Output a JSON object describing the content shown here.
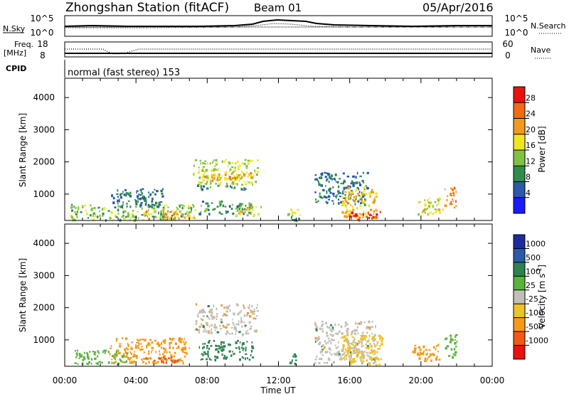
{
  "header": {
    "station": "Zhongshan Station (fitACF)",
    "beam": "Beam 01",
    "date": "05/Apr/2016"
  },
  "strips": {
    "nsky_label": "N.Sky",
    "nsearch_label": "N.Search",
    "noise_ticks": [
      "10^5",
      "10^0"
    ],
    "freq_label_1": "Freq.",
    "freq_label_2": "[MHz]",
    "freq_ticks": [
      "18",
      "8"
    ],
    "nave_label": "Nave",
    "nave_ticks": [
      "60",
      "0"
    ],
    "cpid_label": "CPID",
    "cpid_text": "normal (fast stereo) 153"
  },
  "colors": {
    "power": [
      "#1a1aff",
      "#2a5aa8",
      "#2f8c4e",
      "#7fc241",
      "#f0e61e",
      "#f29a1e",
      "#f26a14",
      "#e8140c"
    ],
    "velocity": [
      "#e8140c",
      "#f25a14",
      "#f59a18",
      "#f0c22a",
      "#c0c0b8",
      "#5ab43a",
      "#2e8250",
      "#2a5aa8",
      "#1e2aa0"
    ]
  },
  "chart_data": [
    {
      "type": "heatmap",
      "variable": "power",
      "ylabel": "Slant Range [km]",
      "yticks": [
        1000,
        2000,
        3000,
        4000
      ],
      "ylim": [
        180,
        4600
      ],
      "xlim": [
        0,
        24
      ],
      "xticks": [
        "00:00",
        "04:00",
        "08:00",
        "12:00",
        "16:00",
        "20:00",
        "00:00"
      ],
      "colorbar_label": "Power [dB]",
      "colorbar_ticks": [
        4,
        8,
        12,
        16,
        20,
        24,
        28
      ],
      "colorbar_range": [
        0,
        32
      ],
      "regions": [
        {
          "t0": 0.3,
          "t1": 7.3,
          "r0": 220,
          "r1": 700,
          "value": 14
        },
        {
          "t0": 4.5,
          "t1": 7.0,
          "r0": 250,
          "r1": 500,
          "value": 22
        },
        {
          "t0": 2.5,
          "t1": 5.5,
          "r0": 600,
          "r1": 1200,
          "value": 8
        },
        {
          "t0": 7.2,
          "t1": 10.8,
          "r0": 1300,
          "r1": 2100,
          "value": 16
        },
        {
          "t0": 7.8,
          "t1": 10.5,
          "r0": 1450,
          "r1": 1700,
          "value": 22
        },
        {
          "t0": 7.3,
          "t1": 10.2,
          "r0": 1150,
          "r1": 1300,
          "value": 10
        },
        {
          "t0": 7.5,
          "t1": 10.5,
          "r0": 400,
          "r1": 800,
          "value": 10
        },
        {
          "t0": 9.5,
          "t1": 11.0,
          "r0": 350,
          "r1": 650,
          "value": 18
        },
        {
          "t0": 12.5,
          "t1": 13.2,
          "r0": 200,
          "r1": 600,
          "value": 14
        },
        {
          "t0": 14.0,
          "t1": 17.0,
          "r0": 700,
          "r1": 1700,
          "value": 8
        },
        {
          "t0": 15.5,
          "t1": 17.5,
          "r0": 250,
          "r1": 1250,
          "value": 20
        },
        {
          "t0": 16.0,
          "t1": 17.8,
          "r0": 220,
          "r1": 500,
          "value": 28
        },
        {
          "t0": 19.8,
          "t1": 21.2,
          "r0": 350,
          "r1": 900,
          "value": 18
        },
        {
          "t0": 21.3,
          "t1": 22.0,
          "r0": 600,
          "r1": 1300,
          "value": 24
        }
      ]
    },
    {
      "type": "heatmap",
      "variable": "velocity",
      "ylabel": "Slant Range [km]",
      "yticks": [
        1000,
        2000,
        3000,
        4000
      ],
      "ylim": [
        180,
        4600
      ],
      "xlim": [
        0,
        24
      ],
      "xlabel": "Time UT",
      "xticks": [
        "00:00",
        "04:00",
        "08:00",
        "12:00",
        "16:00",
        "20:00",
        "00:00"
      ],
      "colorbar_label": "Velocity [m s-1]",
      "colorbar_ticks": [
        "1000",
        "500",
        "100",
        "25",
        "-25",
        "-100",
        "-500",
        "-1000"
      ],
      "regions": [
        {
          "t0": 0.5,
          "t1": 3.5,
          "r0": 250,
          "r1": 700,
          "value": 100
        },
        {
          "t0": 2.5,
          "t1": 7.0,
          "r0": 300,
          "r1": 1100,
          "value": -300
        },
        {
          "t0": 4.5,
          "t1": 6.5,
          "r0": 300,
          "r1": 500,
          "value": -500
        },
        {
          "t0": 7.3,
          "t1": 10.8,
          "r0": 1200,
          "r1": 2150,
          "value": 0
        },
        {
          "t0": 7.5,
          "t1": 10.5,
          "r0": 400,
          "r1": 1000,
          "value": 200
        },
        {
          "t0": 12.5,
          "t1": 13.0,
          "r0": 250,
          "r1": 600,
          "value": 150
        },
        {
          "t0": 14.0,
          "t1": 17.5,
          "r0": 300,
          "r1": 1600,
          "value": 0
        },
        {
          "t0": 15.5,
          "t1": 17.8,
          "r0": 250,
          "r1": 1200,
          "value": -60
        },
        {
          "t0": 19.5,
          "t1": 21.0,
          "r0": 350,
          "r1": 900,
          "value": -300
        },
        {
          "t0": 21.3,
          "t1": 22.0,
          "r0": 500,
          "r1": 1200,
          "value": 60
        }
      ]
    }
  ]
}
